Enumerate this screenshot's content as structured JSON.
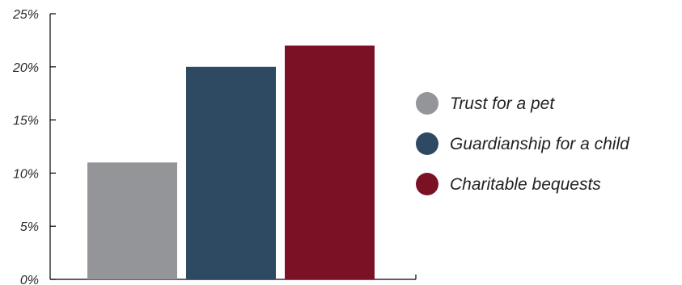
{
  "chart_data": {
    "type": "bar",
    "title": "",
    "xlabel": "",
    "ylabel": "",
    "ylim": [
      0,
      25
    ],
    "y_ticks": [
      0,
      5,
      10,
      15,
      20,
      25
    ],
    "y_tick_labels": [
      "0%",
      "5%",
      "10%",
      "15%",
      "20%",
      "25%"
    ],
    "grid": false,
    "legend_position": "right",
    "series": [
      {
        "name": "Trust for a pet",
        "value": 11,
        "color": "#939598"
      },
      {
        "name": "Guardianship for a child",
        "value": 20,
        "color": "#2e4a63"
      },
      {
        "name": "Charitable bequests",
        "value": 22,
        "color": "#7b1125"
      }
    ]
  }
}
